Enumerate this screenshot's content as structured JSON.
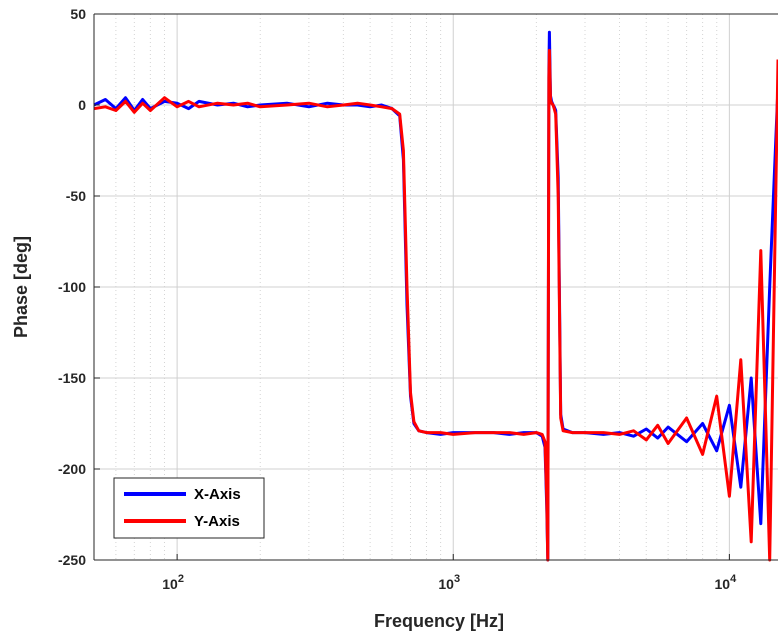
{
  "chart_data": {
    "type": "line",
    "title": "",
    "xlabel": "Frequency [Hz]",
    "ylabel": "Phase [deg]",
    "xscale": "log",
    "xlim": [
      50,
      15000
    ],
    "ylim": [
      -250,
      50
    ],
    "grid": true,
    "minor_grid": true,
    "x_ticks": [
      {
        "value": 100,
        "base": "10",
        "exp": "2"
      },
      {
        "value": 1000,
        "base": "10",
        "exp": "3"
      },
      {
        "value": 10000,
        "base": "10",
        "exp": "4"
      }
    ],
    "y_ticks": [
      {
        "value": 50,
        "label": "50"
      },
      {
        "value": 0,
        "label": "0"
      },
      {
        "value": -50,
        "label": "-50"
      },
      {
        "value": -100,
        "label": "-100"
      },
      {
        "value": -150,
        "label": "-150"
      },
      {
        "value": -200,
        "label": "-200"
      },
      {
        "value": -250,
        "label": "-250"
      }
    ],
    "legend": {
      "position": "bottom-left"
    },
    "series": [
      {
        "name": "X-Axis",
        "color": "#0000ff",
        "x": [
          50,
          55,
          60,
          65,
          70,
          75,
          80,
          90,
          100,
          110,
          120,
          140,
          160,
          180,
          200,
          250,
          300,
          350,
          400,
          450,
          500,
          550,
          600,
          640,
          660,
          680,
          700,
          720,
          750,
          800,
          900,
          1000,
          1200,
          1400,
          1600,
          1800,
          2000,
          2100,
          2150,
          2180,
          2200,
          2220,
          2230,
          2250,
          2270,
          2300,
          2320,
          2350,
          2400,
          2450,
          2500,
          2700,
          3000,
          3500,
          4000,
          4500,
          5000,
          5500,
          6000,
          7000,
          8000,
          9000,
          10000,
          11000,
          12000,
          13000,
          14000,
          15000
        ],
        "y": [
          0,
          3,
          -2,
          4,
          -3,
          3,
          -2,
          2,
          1,
          -2,
          2,
          0,
          1,
          -1,
          0,
          1,
          -1,
          1,
          0,
          0,
          -1,
          0,
          -2,
          -6,
          -30,
          -110,
          -160,
          -175,
          -179,
          -180,
          -181,
          -180,
          -180,
          -180,
          -181,
          -180,
          -180,
          -182,
          -188,
          -220,
          -250,
          20,
          40,
          5,
          2,
          0,
          -1,
          -3,
          -40,
          -170,
          -178,
          -180,
          -180,
          -181,
          -180,
          -182,
          -178,
          -183,
          -177,
          -185,
          -175,
          -190,
          -165,
          -210,
          -150,
          -230,
          -100,
          10
        ]
      },
      {
        "name": "Y-Axis",
        "color": "#ff0000",
        "x": [
          50,
          55,
          60,
          65,
          70,
          75,
          80,
          90,
          100,
          110,
          120,
          140,
          160,
          180,
          200,
          250,
          300,
          350,
          400,
          450,
          500,
          550,
          600,
          640,
          660,
          680,
          700,
          720,
          750,
          800,
          900,
          1000,
          1200,
          1400,
          1600,
          1800,
          2000,
          2100,
          2150,
          2180,
          2200,
          2220,
          2230,
          2250,
          2270,
          2300,
          2320,
          2350,
          2400,
          2450,
          2500,
          2700,
          3000,
          3500,
          4000,
          4500,
          5000,
          5500,
          6000,
          7000,
          8000,
          9000,
          10000,
          11000,
          12000,
          13000,
          14000,
          15000
        ],
        "y": [
          -2,
          -1,
          -3,
          2,
          -4,
          1,
          -3,
          4,
          -1,
          2,
          -1,
          1,
          0,
          1,
          -1,
          0,
          1,
          -1,
          0,
          1,
          0,
          -1,
          -2,
          -5,
          -25,
          -100,
          -158,
          -174,
          -179,
          -180,
          -180,
          -181,
          -180,
          -180,
          -180,
          -181,
          -180,
          -181,
          -185,
          -215,
          -250,
          15,
          30,
          3,
          1,
          0,
          -2,
          -5,
          -50,
          -172,
          -179,
          -180,
          -180,
          -180,
          -181,
          -179,
          -184,
          -176,
          -186,
          -172,
          -192,
          -160,
          -215,
          -140,
          -240,
          -80,
          -250,
          25
        ]
      }
    ]
  }
}
